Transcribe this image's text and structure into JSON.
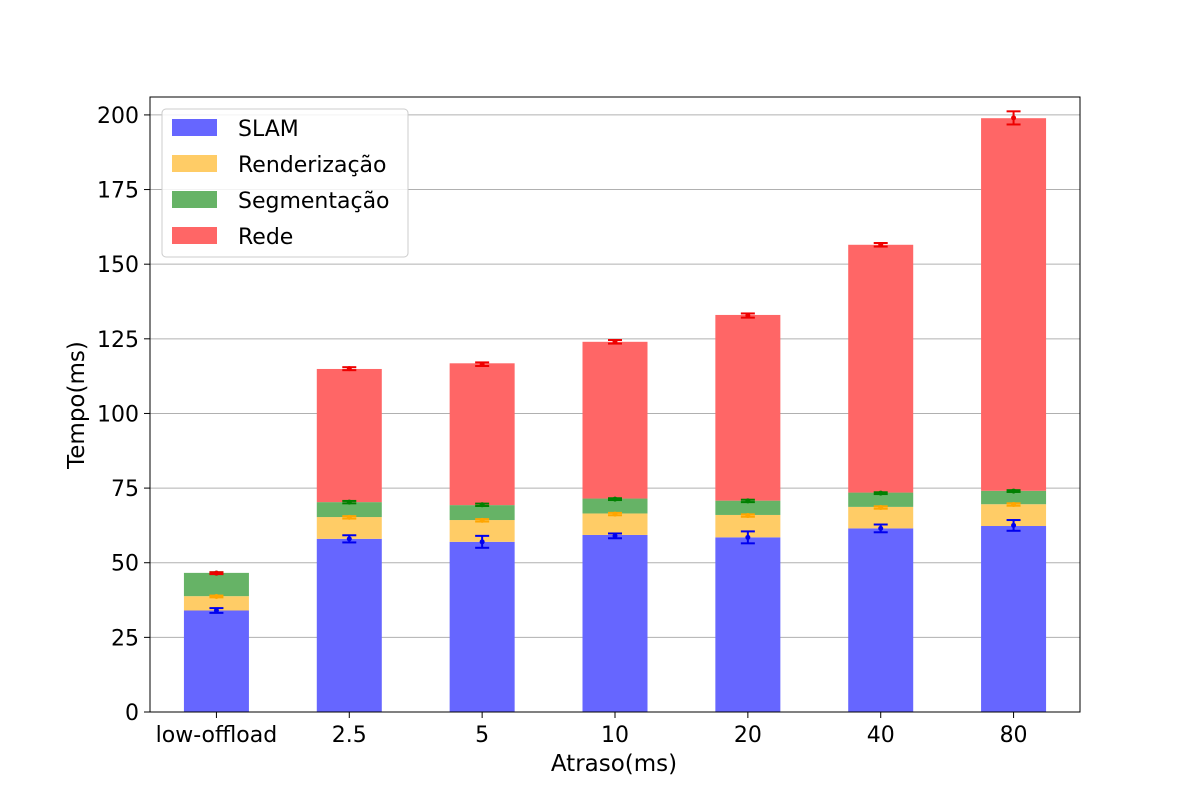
{
  "chart_data": {
    "type": "bar",
    "stacked": true,
    "categories": [
      "low-offload",
      "2.5",
      "5",
      "10",
      "20",
      "40",
      "80"
    ],
    "xlabel": "Atraso(ms)",
    "ylabel": "Tempo(ms)",
    "ylim": [
      0,
      206
    ],
    "yticks": [
      0,
      25,
      50,
      75,
      100,
      125,
      150,
      175,
      200
    ],
    "grid": "y",
    "legend_position": "top-left",
    "series": [
      {
        "name": "SLAM",
        "color": "#6666ff",
        "errcolor": "#0000ee",
        "values": [
          34,
          58,
          57,
          59.3,
          58.5,
          61.5,
          62.3
        ],
        "means": [
          34,
          58,
          57,
          59,
          58.5,
          61.5,
          62.5
        ],
        "errors": [
          0.8,
          1.2,
          2.0,
          0.8,
          2.0,
          1.3,
          1.8
        ]
      },
      {
        "name": "Renderização",
        "color": "#ffcc66",
        "errcolor": "#ffa500",
        "values": [
          4.8,
          7.3,
          7.3,
          7.2,
          7.5,
          7.2,
          7.3
        ],
        "means": [
          38.7,
          65.2,
          64.2,
          66.3,
          65.8,
          68.5,
          69.5
        ],
        "errors": [
          0.3,
          0.4,
          0.4,
          0.4,
          0.4,
          0.4,
          0.4
        ]
      },
      {
        "name": "Segmentação",
        "color": "#66b366",
        "errcolor": "#008000",
        "values": [
          7.8,
          5,
          5,
          5,
          4.8,
          4.8,
          4.5
        ],
        "means": [
          46.5,
          70.3,
          69.4,
          71.3,
          70.7,
          73.3,
          74
        ],
        "errors": [
          0.3,
          0.4,
          0.4,
          0.3,
          0.4,
          0.3,
          0.3
        ]
      },
      {
        "name": "Rede",
        "color": "#ff6666",
        "errcolor": "#ee0000",
        "values": [
          0,
          44.6,
          47.5,
          52.5,
          62.2,
          83,
          124.8
        ],
        "means": [
          46.5,
          115,
          116.5,
          124,
          132.8,
          156.5,
          199
        ],
        "errors": [
          0.3,
          0.5,
          0.6,
          0.6,
          0.7,
          0.6,
          2.2
        ]
      }
    ]
  }
}
